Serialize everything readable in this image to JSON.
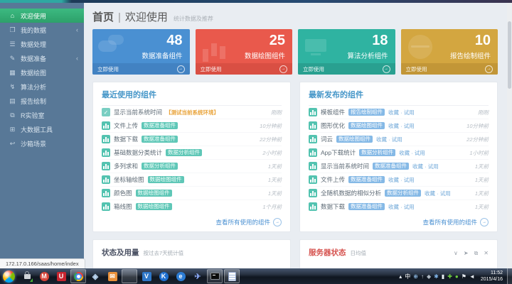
{
  "icons": {
    "chevron_left": "‹",
    "arrow_right": "→",
    "check": "✓"
  },
  "window": {
    "status_url": "172.17.0.166/saas/home/index"
  },
  "sidebar": {
    "items": [
      {
        "label": "欢迎使用",
        "icon": "home-icon",
        "glyph": "⌂",
        "active": true,
        "submenu": false
      },
      {
        "label": "我的数据",
        "icon": "my-data-icon",
        "glyph": "❐",
        "active": false,
        "submenu": true
      },
      {
        "label": "数据处理",
        "icon": "data-process-icon",
        "glyph": "☰",
        "active": false,
        "submenu": false
      },
      {
        "label": "数据准备",
        "icon": "data-prepare-icon",
        "glyph": "✎",
        "active": false,
        "submenu": true
      },
      {
        "label": "数据绘图",
        "icon": "data-plot-icon",
        "glyph": "▦",
        "active": false,
        "submenu": false
      },
      {
        "label": "算法分析",
        "icon": "algorithm-icon",
        "glyph": "↯",
        "active": false,
        "submenu": false
      },
      {
        "label": "报告绘制",
        "icon": "report-icon",
        "glyph": "▤",
        "active": false,
        "submenu": false
      },
      {
        "label": "R实验室",
        "icon": "r-lab-icon",
        "glyph": "⧉",
        "active": false,
        "submenu": false
      },
      {
        "label": "大数据工具",
        "icon": "bigdata-tools-icon",
        "glyph": "⊞",
        "active": false,
        "submenu": false
      },
      {
        "label": "沙箱场景",
        "icon": "sandbox-icon",
        "glyph": "↩",
        "active": false,
        "submenu": false
      }
    ]
  },
  "header": {
    "breadcrumb": "首页",
    "separator": "|",
    "title": "欢迎使用",
    "subtitle": "统计数据及推荐"
  },
  "cards": [
    {
      "value": "48",
      "label": "数据准备组件",
      "action": "立即使用",
      "color": "#4a90d2",
      "footer": "#4282c2",
      "deco": "clouds"
    },
    {
      "value": "25",
      "label": "数据绘图组件",
      "action": "立即使用",
      "color": "#e9594c",
      "footer": "#d94f43",
      "deco": "bars"
    },
    {
      "value": "18",
      "label": "算法分析组件",
      "action": "立即使用",
      "color": "#2fb3a1",
      "footer": "#29a090",
      "deco": "monitor"
    },
    {
      "value": "10",
      "label": "报告绘制组件",
      "action": "立即使用",
      "color": "#d3a640",
      "footer": "#c29637",
      "deco": "globe"
    }
  ],
  "recent": {
    "title": "最近使用的组件",
    "footer_link": "查看所有使用的组件",
    "rows": [
      {
        "icon": "check",
        "name": "显示当前系统时间",
        "tag": "【测试当前系统环境】",
        "tag_type": "orange",
        "time": "刚刚"
      },
      {
        "icon": "chart",
        "name": "文件上传",
        "tag": "数据准备组件",
        "tag_type": "teal",
        "time": "10分钟前"
      },
      {
        "icon": "chart",
        "name": "数据下载",
        "tag": "数据准备组件",
        "tag_type": "teal",
        "time": "22分钟前"
      },
      {
        "icon": "chart",
        "name": "基础数据分类统计",
        "tag": "数据分析组件",
        "tag_type": "teal",
        "time": "2小时前"
      },
      {
        "icon": "chart",
        "name": "多列求和",
        "tag": "数据分析组件",
        "tag_type": "teal",
        "time": "1天前"
      },
      {
        "icon": "chart",
        "name": "坐标轴绘图",
        "tag": "数据绘图组件",
        "tag_type": "teal",
        "time": "1天前"
      },
      {
        "icon": "chart",
        "name": "颜色图",
        "tag": "数据绘图组件",
        "tag_type": "teal",
        "time": "1天前"
      },
      {
        "icon": "chart",
        "name": "箱线图",
        "tag": "数据绘图组件",
        "tag_type": "teal",
        "time": "1个月前"
      }
    ]
  },
  "latest": {
    "title": "最新发布的组件",
    "footer_link": "查看所有使用的组件",
    "rows": [
      {
        "icon": "chart",
        "name": "模板组件",
        "tag": "报告绘制组件",
        "tag_type": "blue",
        "extra": "收藏 · 试用",
        "time": "刚刚"
      },
      {
        "icon": "chart",
        "name": "图形优化",
        "tag": "数据绘图组件",
        "tag_type": "blue",
        "extra": "收藏 · 试用",
        "time": "10分钟前"
      },
      {
        "icon": "chart",
        "name": "词云",
        "tag": "数据绘图组件",
        "tag_type": "blue",
        "extra": "收藏 · 试用",
        "time": "22分钟前"
      },
      {
        "icon": "chart",
        "name": "App下载统计",
        "tag": "数据分析组件",
        "tag_type": "blue",
        "extra": "收藏 · 试用",
        "time": "1小时前"
      },
      {
        "icon": "chart",
        "name": "显示当前系统时间",
        "tag": "数据准备组件",
        "tag_type": "blue",
        "extra": "收藏 · 试用",
        "time": "1天前"
      },
      {
        "icon": "chart",
        "name": "文件上传",
        "tag": "数据准备组件",
        "tag_type": "blue",
        "extra": "收藏 · 试用",
        "time": "1天前"
      },
      {
        "icon": "chart",
        "name": "全随机数据的相似分析",
        "tag": "数据分析组件",
        "tag_type": "blue",
        "extra": "收藏 · 试用",
        "time": "1天前"
      },
      {
        "icon": "chart",
        "name": "数据下载",
        "tag": "数据准备组件",
        "tag_type": "blue",
        "extra": "收藏 · 试用",
        "time": "1天前"
      }
    ]
  },
  "usage_panel": {
    "title": "状态及用量",
    "subtitle": "按过去7天统计值"
  },
  "server_panel": {
    "title": "服务器状态",
    "subtitle": "日均值",
    "window_icons": [
      {
        "name": "collapse-icon",
        "glyph": "∨"
      },
      {
        "name": "pin-icon",
        "glyph": "➤"
      },
      {
        "name": "restore-icon",
        "glyph": "⧉"
      },
      {
        "name": "close-icon",
        "glyph": "✕"
      }
    ]
  },
  "taskbar": {
    "apps": [
      {
        "name": "security-lock-icon",
        "kind": "lock",
        "active": false
      },
      {
        "name": "bank-client-icon",
        "kind": "circle",
        "glyph": "M",
        "bg": "#d6453a",
        "active": false
      },
      {
        "name": "uc-browser-icon",
        "kind": "square",
        "glyph": "U",
        "bg": "#c8242f",
        "active": false
      },
      {
        "name": "chrome-icon",
        "kind": "chrome",
        "active": true
      },
      {
        "name": "qq-diamond-icon",
        "kind": "glyph",
        "glyph": "◈",
        "color": "#bcd6f2",
        "active": false
      },
      {
        "name": "foxmail-icon",
        "kind": "square",
        "glyph": "✉",
        "bg": "#e8903a",
        "active": false
      },
      {
        "name": "explorer-folder-icon",
        "kind": "folder",
        "active": true
      },
      {
        "name": "v-app-icon",
        "kind": "square",
        "glyph": "V",
        "bg": "#2e77c8",
        "active": false
      },
      {
        "name": "k-app-icon",
        "kind": "circle",
        "glyph": "K",
        "bg": "#1f6fd0",
        "active": false
      },
      {
        "name": "ie-browser-icon",
        "kind": "circle",
        "glyph": "e",
        "bg": "#2c7cd4",
        "active": false
      },
      {
        "name": "thunder-bird-icon",
        "kind": "glyph",
        "glyph": "✈",
        "color": "#8aa8f5",
        "active": false
      },
      {
        "name": "cmd-icon",
        "kind": "cmd",
        "active": true
      },
      {
        "name": "notepad-icon",
        "kind": "notepad",
        "active": true
      }
    ],
    "tray": [
      {
        "name": "show-hidden-icon",
        "glyph": "▴",
        "color": "#e8edf3"
      },
      {
        "name": "ime-indicator",
        "glyph": "中",
        "color": "#ffffff"
      },
      {
        "name": "network-icon",
        "glyph": "⊕",
        "color": "#9fd1ff"
      },
      {
        "name": "update-icon",
        "glyph": "↑",
        "color": "#cfd8e2"
      },
      {
        "name": "safely-remove-icon",
        "glyph": "◆",
        "color": "#aeb8c2"
      },
      {
        "name": "bluetooth-icon",
        "glyph": "✱",
        "color": "#7fb4e8"
      },
      {
        "name": "battery-icon",
        "glyph": "▮",
        "color": "#e8edf3"
      },
      {
        "name": "security-shield-icon",
        "glyph": "✚",
        "color": "#6fcf3f"
      },
      {
        "name": "antivirus-icon",
        "glyph": "●",
        "color": "#6fcf3f"
      },
      {
        "name": "flag-icon",
        "glyph": "⚑",
        "color": "#e8edf3"
      },
      {
        "name": "volume-icon",
        "glyph": "◄",
        "color": "#e8edf3"
      }
    ],
    "clock": {
      "time": "11:52",
      "date": "2015/4/16"
    }
  }
}
